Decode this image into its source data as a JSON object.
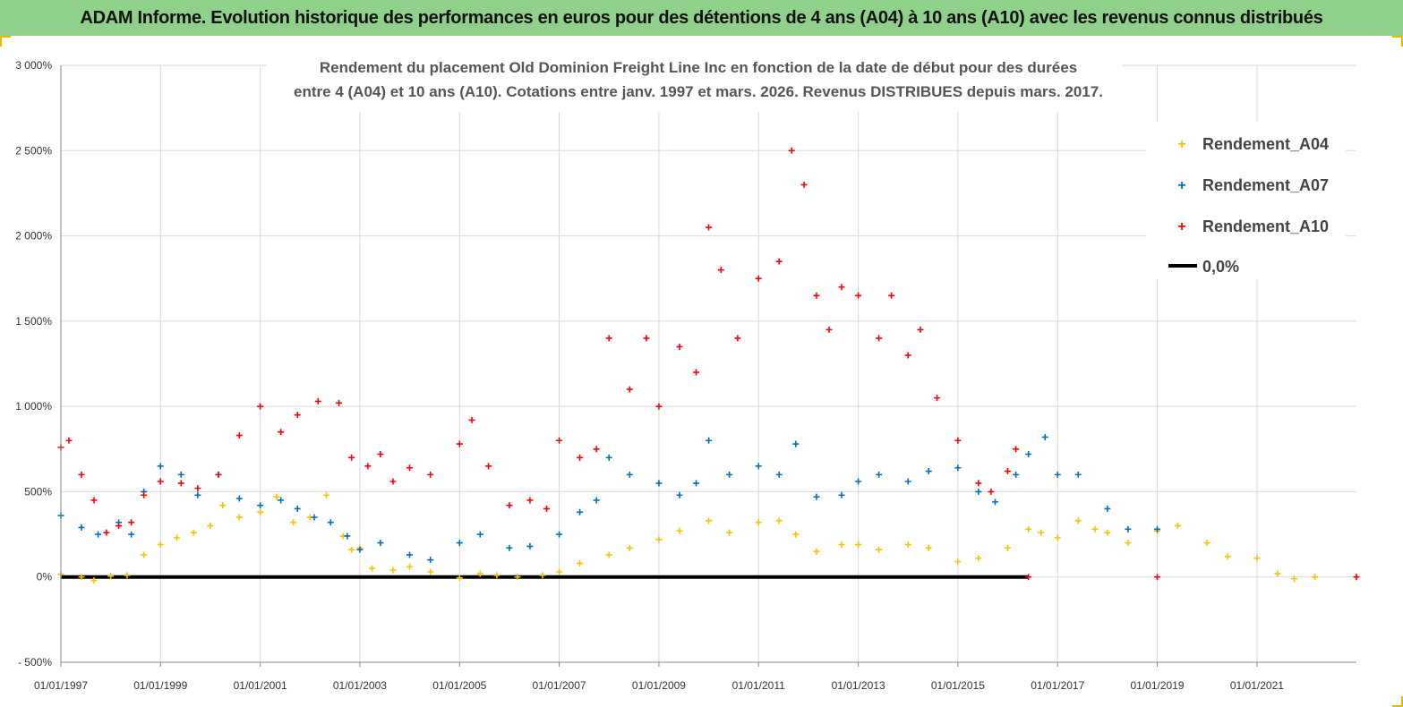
{
  "banner": {
    "text": "ADAM Informe. Evolution historique des performances en euros pour des détentions de 4 ans (A04) à 10 ans (A10) avec les revenus connus distribués"
  },
  "colors": {
    "banner": "#8fd18a",
    "A04": "#ffc000",
    "A07": "#0070c0",
    "A10": "#ff0000",
    "zero": "#000000",
    "grid": "#d9d9d9"
  },
  "chart_data": {
    "type": "scatter",
    "title": "",
    "subtitle_lines": [
      "Rendement du placement Old Dominion Freight Line Inc en fonction de la date de début pour des durées",
      "entre 4 (A04) et 10 ans (A10). Cotations entre janv. 1997 et mars. 2026. Revenus DISTRIBUES depuis mars. 2017."
    ],
    "xlabel": "",
    "ylabel": "",
    "x_range": [
      "1997-01-01",
      "2022-12-31"
    ],
    "x_ticks": [
      "01/01/1997",
      "01/01/1999",
      "01/01/2001",
      "01/01/2003",
      "01/01/2005",
      "01/01/2007",
      "01/01/2009",
      "01/01/2011",
      "01/01/2013",
      "01/01/2015",
      "01/01/2017",
      "01/01/2019",
      "01/01/2021"
    ],
    "y_range": [
      -500,
      3000
    ],
    "y_ticks": [
      -500,
      0,
      500,
      1000,
      1500,
      2000,
      2500,
      3000
    ],
    "y_tick_labels": [
      "- 500%",
      "0%",
      "500%",
      "1 000%",
      "1 500%",
      "2 000%",
      "2 500%",
      "3 000%"
    ],
    "grid": true,
    "legend_position": "top-right",
    "series": [
      {
        "name": "Rendement_A04",
        "marker": "+",
        "points": [
          [
            "1997-01-01",
            15
          ],
          [
            "1997-06-01",
            0
          ],
          [
            "1997-09-01",
            -20
          ],
          [
            "1998-01-01",
            5
          ],
          [
            "1998-05-01",
            10
          ],
          [
            "1998-09-01",
            130
          ],
          [
            "1999-01-01",
            190
          ],
          [
            "1999-05-01",
            230
          ],
          [
            "1999-09-01",
            260
          ],
          [
            "2000-01-01",
            300
          ],
          [
            "2000-04-01",
            420
          ],
          [
            "2000-08-01",
            350
          ],
          [
            "2001-01-01",
            380
          ],
          [
            "2001-05-01",
            470
          ],
          [
            "2001-09-01",
            320
          ],
          [
            "2002-01-01",
            350
          ],
          [
            "2002-05-01",
            480
          ],
          [
            "2002-09-01",
            240
          ],
          [
            "2002-11-01",
            160
          ],
          [
            "2003-01-01",
            170
          ],
          [
            "2003-04-01",
            50
          ],
          [
            "2003-09-01",
            40
          ],
          [
            "2004-01-01",
            60
          ],
          [
            "2004-06-01",
            30
          ],
          [
            "2005-01-01",
            -5
          ],
          [
            "2005-06-01",
            20
          ],
          [
            "2005-10-01",
            10
          ],
          [
            "2006-03-01",
            0
          ],
          [
            "2006-09-01",
            10
          ],
          [
            "2007-01-01",
            30
          ],
          [
            "2007-06-01",
            80
          ],
          [
            "2008-01-01",
            130
          ],
          [
            "2008-06-01",
            170
          ],
          [
            "2009-01-01",
            220
          ],
          [
            "2009-06-01",
            270
          ],
          [
            "2010-01-01",
            330
          ],
          [
            "2010-06-01",
            260
          ],
          [
            "2011-01-01",
            320
          ],
          [
            "2011-06-01",
            330
          ],
          [
            "2011-10-01",
            250
          ],
          [
            "2012-03-01",
            150
          ],
          [
            "2012-09-01",
            190
          ],
          [
            "2013-01-01",
            190
          ],
          [
            "2013-06-01",
            160
          ],
          [
            "2014-01-01",
            190
          ],
          [
            "2014-06-01",
            170
          ],
          [
            "2015-01-01",
            90
          ],
          [
            "2015-06-01",
            110
          ],
          [
            "2016-01-01",
            170
          ],
          [
            "2016-06-01",
            280
          ],
          [
            "2016-09-01",
            260
          ],
          [
            "2017-01-01",
            230
          ],
          [
            "2017-06-01",
            330
          ],
          [
            "2017-10-01",
            280
          ],
          [
            "2018-01-01",
            260
          ],
          [
            "2018-06-01",
            200
          ],
          [
            "2019-01-01",
            270
          ],
          [
            "2019-06-01",
            300
          ],
          [
            "2020-01-01",
            200
          ],
          [
            "2020-06-01",
            120
          ],
          [
            "2021-01-01",
            110
          ],
          [
            "2021-06-01",
            20
          ],
          [
            "2021-10-01",
            -10
          ],
          [
            "2022-03-01",
            0
          ],
          [
            "2022-12-31",
            0
          ]
        ]
      },
      {
        "name": "Rendement_A07",
        "marker": "+",
        "points": [
          [
            "1997-01-01",
            360
          ],
          [
            "1997-06-01",
            290
          ],
          [
            "1997-10-01",
            250
          ],
          [
            "1998-03-01",
            320
          ],
          [
            "1998-06-01",
            250
          ],
          [
            "1998-09-01",
            500
          ],
          [
            "1999-01-01",
            650
          ],
          [
            "1999-06-01",
            600
          ],
          [
            "1999-10-01",
            480
          ],
          [
            "2000-03-01",
            600
          ],
          [
            "2000-08-01",
            460
          ],
          [
            "2001-01-01",
            420
          ],
          [
            "2001-06-01",
            450
          ],
          [
            "2001-10-01",
            400
          ],
          [
            "2002-02-01",
            350
          ],
          [
            "2002-06-01",
            320
          ],
          [
            "2002-10-01",
            240
          ],
          [
            "2003-01-01",
            160
          ],
          [
            "2003-06-01",
            200
          ],
          [
            "2004-01-01",
            130
          ],
          [
            "2004-06-01",
            100
          ],
          [
            "2005-01-01",
            200
          ],
          [
            "2005-06-01",
            250
          ],
          [
            "2006-01-01",
            170
          ],
          [
            "2006-06-01",
            180
          ],
          [
            "2007-01-01",
            250
          ],
          [
            "2007-06-01",
            380
          ],
          [
            "2007-10-01",
            450
          ],
          [
            "2008-01-01",
            700
          ],
          [
            "2008-06-01",
            600
          ],
          [
            "2009-01-01",
            550
          ],
          [
            "2009-06-01",
            480
          ],
          [
            "2009-10-01",
            550
          ],
          [
            "2010-01-01",
            800
          ],
          [
            "2010-06-01",
            600
          ],
          [
            "2011-01-01",
            650
          ],
          [
            "2011-06-01",
            600
          ],
          [
            "2011-10-01",
            780
          ],
          [
            "2012-03-01",
            470
          ],
          [
            "2012-09-01",
            480
          ],
          [
            "2013-01-01",
            560
          ],
          [
            "2013-06-01",
            600
          ],
          [
            "2014-01-01",
            560
          ],
          [
            "2014-06-01",
            620
          ],
          [
            "2015-01-01",
            640
          ],
          [
            "2015-06-01",
            500
          ],
          [
            "2015-10-01",
            440
          ],
          [
            "2016-03-01",
            600
          ],
          [
            "2016-06-01",
            720
          ],
          [
            "2016-10-01",
            820
          ],
          [
            "2017-01-01",
            600
          ],
          [
            "2017-06-01",
            600
          ],
          [
            "2018-01-01",
            400
          ],
          [
            "2018-06-01",
            280
          ],
          [
            "2019-01-01",
            280
          ]
        ]
      },
      {
        "name": "Rendement_A10",
        "marker": "+",
        "points": [
          [
            "1997-01-01",
            760
          ],
          [
            "1997-03-01",
            800
          ],
          [
            "1997-06-01",
            600
          ],
          [
            "1997-09-01",
            450
          ],
          [
            "1997-12-01",
            260
          ],
          [
            "1998-03-01",
            300
          ],
          [
            "1998-06-01",
            320
          ],
          [
            "1998-09-01",
            480
          ],
          [
            "1999-01-01",
            560
          ],
          [
            "1999-06-01",
            550
          ],
          [
            "1999-10-01",
            520
          ],
          [
            "2000-03-01",
            600
          ],
          [
            "2000-08-01",
            830
          ],
          [
            "2001-01-01",
            1000
          ],
          [
            "2001-06-01",
            850
          ],
          [
            "2001-10-01",
            950
          ],
          [
            "2002-03-01",
            1030
          ],
          [
            "2002-08-01",
            1020
          ],
          [
            "2002-11-01",
            700
          ],
          [
            "2003-03-01",
            650
          ],
          [
            "2003-06-01",
            720
          ],
          [
            "2003-09-01",
            560
          ],
          [
            "2004-01-01",
            640
          ],
          [
            "2004-06-01",
            600
          ],
          [
            "2005-01-01",
            780
          ],
          [
            "2005-04-01",
            920
          ],
          [
            "2005-08-01",
            650
          ],
          [
            "2006-01-01",
            420
          ],
          [
            "2006-06-01",
            450
          ],
          [
            "2006-10-01",
            400
          ],
          [
            "2007-01-01",
            800
          ],
          [
            "2007-06-01",
            700
          ],
          [
            "2007-10-01",
            750
          ],
          [
            "2008-01-01",
            1400
          ],
          [
            "2008-06-01",
            1100
          ],
          [
            "2008-10-01",
            1400
          ],
          [
            "2009-01-01",
            1000
          ],
          [
            "2009-06-01",
            1350
          ],
          [
            "2009-10-01",
            1200
          ],
          [
            "2010-01-01",
            2050
          ],
          [
            "2010-04-01",
            1800
          ],
          [
            "2010-08-01",
            1400
          ],
          [
            "2011-01-01",
            1750
          ],
          [
            "2011-06-01",
            1850
          ],
          [
            "2011-09-01",
            2500
          ],
          [
            "2011-12-01",
            2300
          ],
          [
            "2012-03-01",
            1650
          ],
          [
            "2012-06-01",
            1450
          ],
          [
            "2012-09-01",
            1700
          ],
          [
            "2013-01-01",
            1650
          ],
          [
            "2013-06-01",
            1400
          ],
          [
            "2013-09-01",
            1650
          ],
          [
            "2014-01-01",
            1300
          ],
          [
            "2014-04-01",
            1450
          ],
          [
            "2014-08-01",
            1050
          ],
          [
            "2015-01-01",
            800
          ],
          [
            "2015-06-01",
            550
          ],
          [
            "2015-09-01",
            500
          ],
          [
            "2016-01-01",
            620
          ],
          [
            "2016-03-01",
            750
          ],
          [
            "2016-06-01",
            0
          ],
          [
            "2019-01-01",
            0
          ],
          [
            "2022-12-31",
            0
          ]
        ]
      },
      {
        "name": "0,0%",
        "type": "line",
        "points": [
          [
            "1997-01-01",
            0
          ],
          [
            "2016-06-01",
            0
          ]
        ]
      }
    ]
  }
}
